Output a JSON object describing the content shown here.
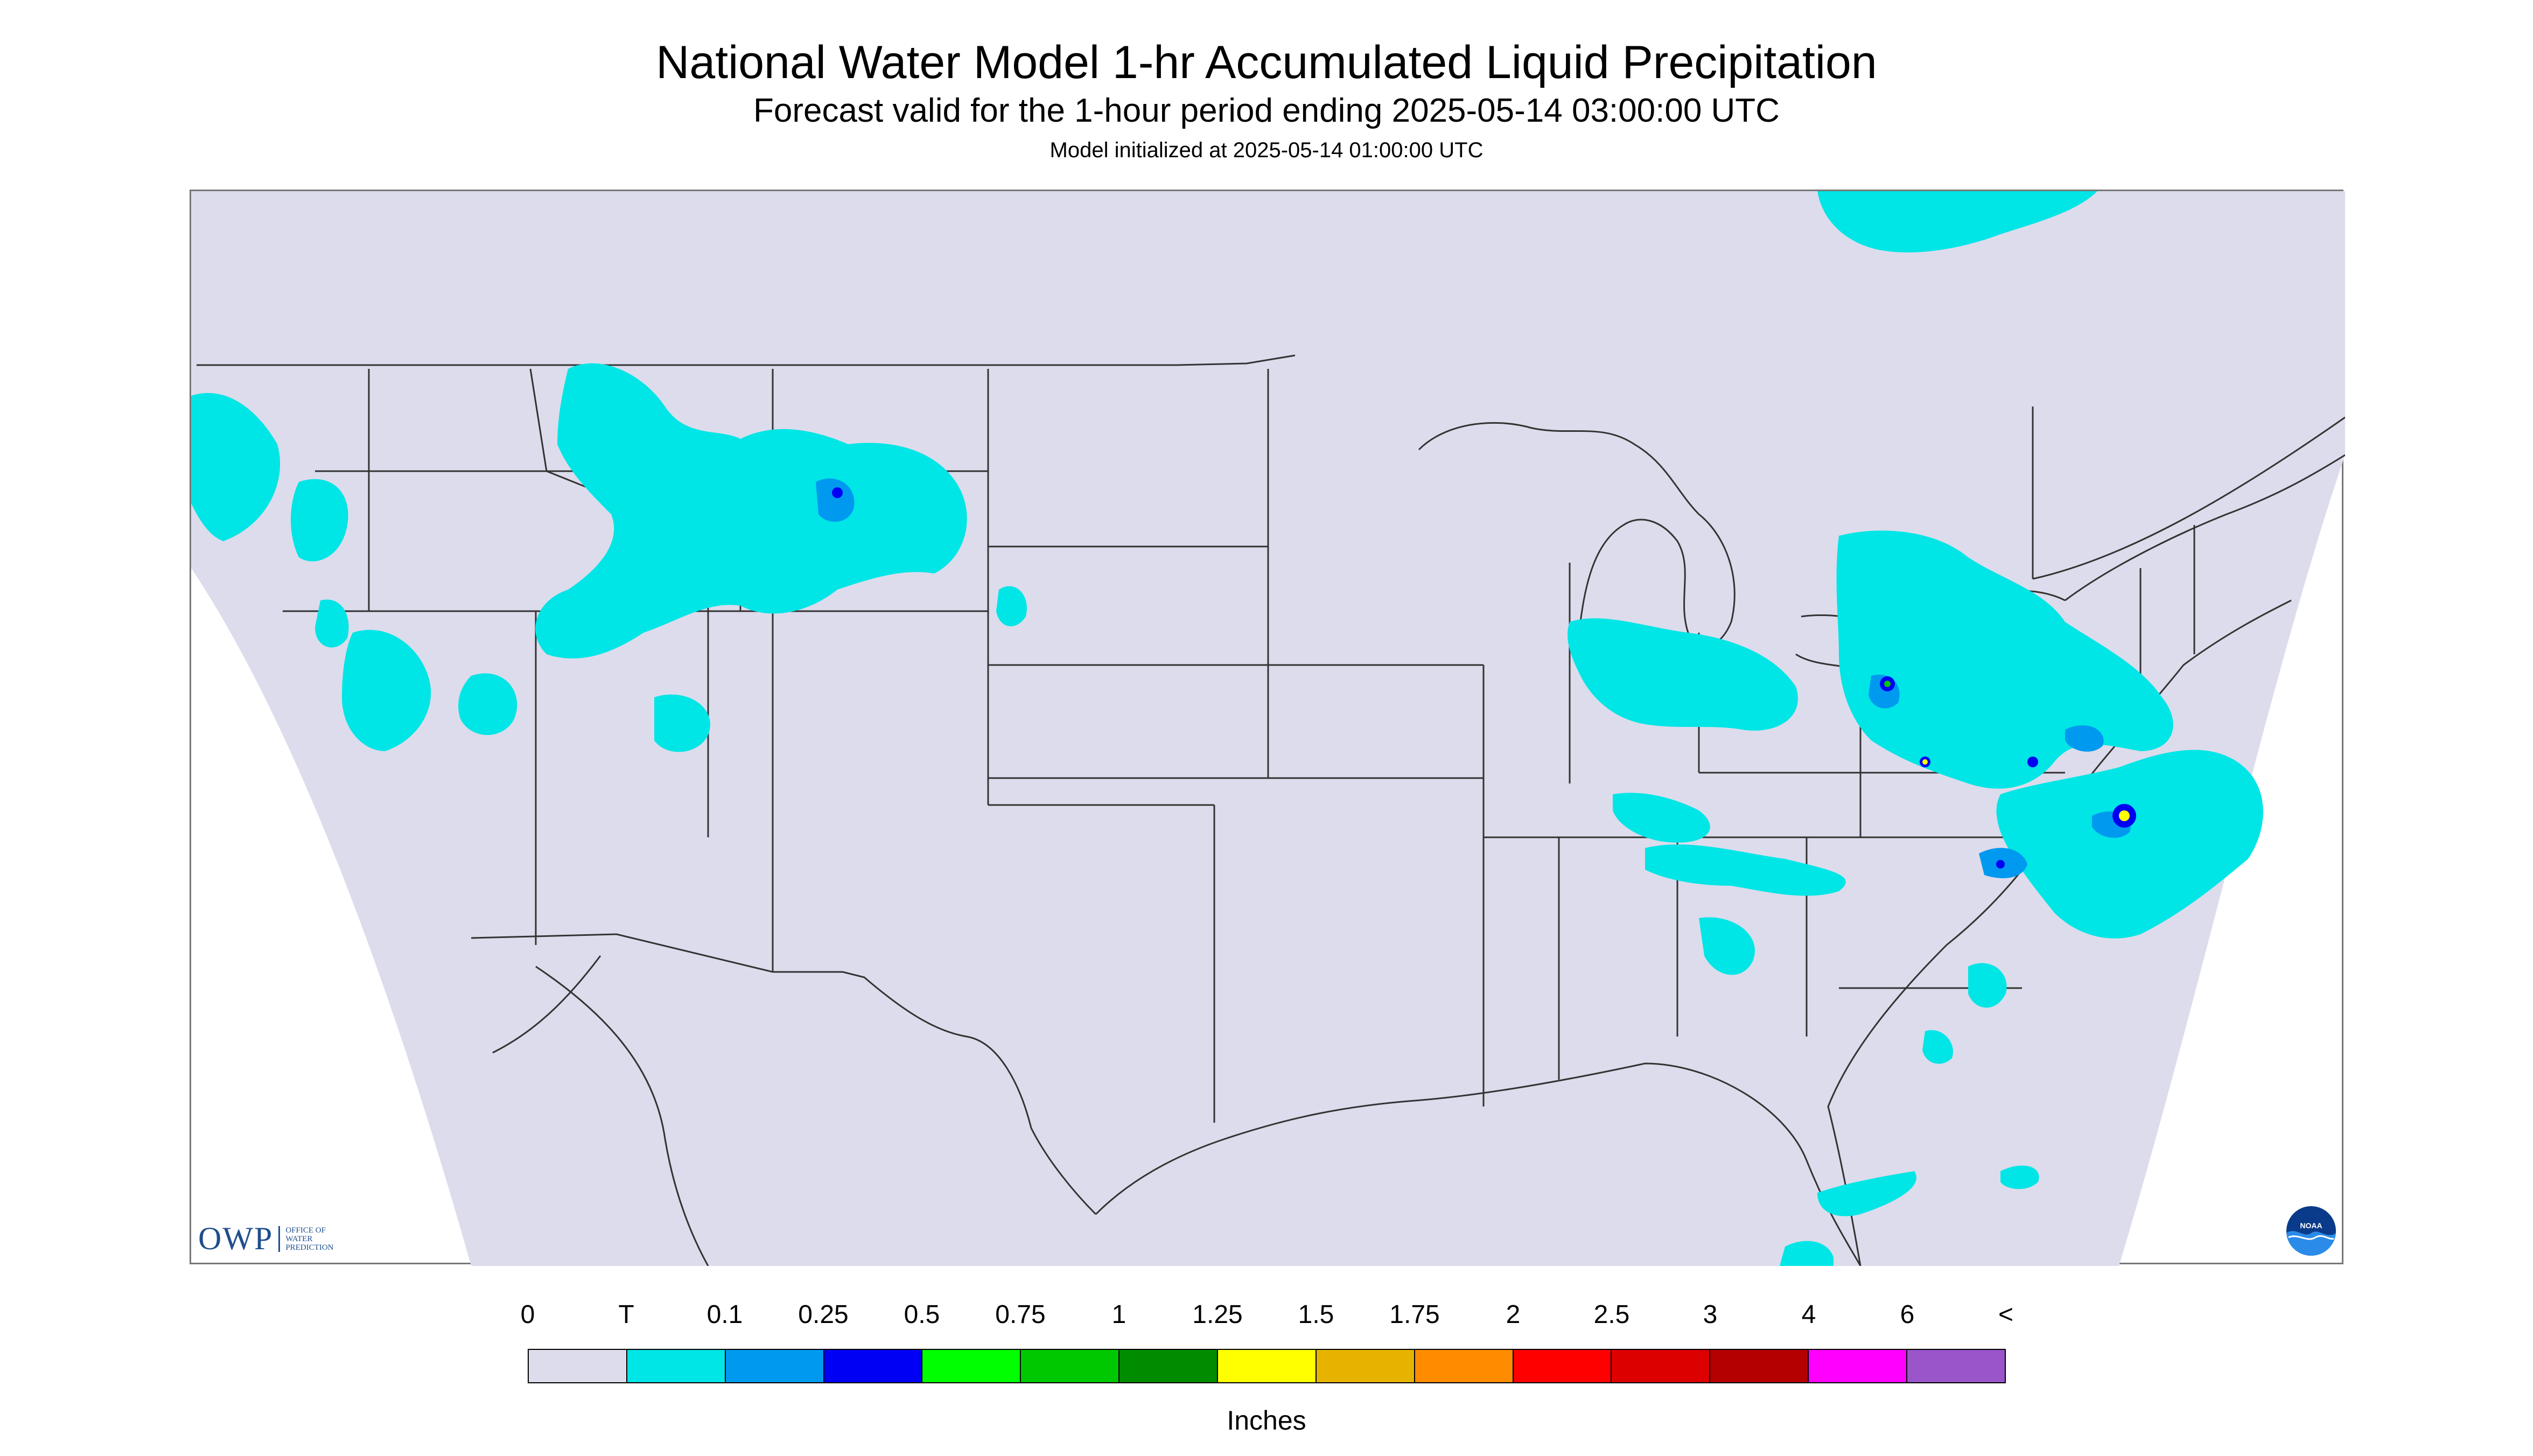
{
  "header": {
    "title": "National Water Model 1-hr Accumulated Liquid Precipitation",
    "subtitle": "Forecast valid for the 1-hour period ending 2025-05-14 03:00:00 UTC",
    "init": "Model initialized at 2025-05-14 01:00:00 UTC"
  },
  "map": {
    "projection_fill": "#dcdcec",
    "outside_fill": "#ffffff",
    "boundary_color": "#333333",
    "light_precip_color": "#00e5e5",
    "features": [
      {
        "name": "pacific-northwest-coastal",
        "level": "T"
      },
      {
        "name": "northern-rockies-montana",
        "level": "0.1"
      },
      {
        "name": "great-basin-nevada",
        "level": "T"
      },
      {
        "name": "ohio-valley",
        "level": "0.1"
      },
      {
        "name": "mid-atlantic-northeast",
        "level": "0.25"
      },
      {
        "name": "carolinas-coastal",
        "level": "0.5"
      },
      {
        "name": "offshore-atlantic",
        "level": "1.5"
      },
      {
        "name": "quebec-north",
        "level": "T"
      },
      {
        "name": "gulf-bahamas",
        "level": "T"
      }
    ]
  },
  "logos": {
    "owp_word": "OWP",
    "owp_sub": "OFFICE OF\nWATER\nPREDICTION",
    "noaa_word": "NOAA"
  },
  "legend": {
    "tick_labels": [
      "0",
      "T",
      "0.1",
      "0.25",
      "0.5",
      "0.75",
      "1",
      "1.25",
      "1.5",
      "1.75",
      "2",
      "2.5",
      "3",
      "4",
      "6",
      "<"
    ],
    "colors": [
      "#dcdcec",
      "#00e5e5",
      "#0099f0",
      "#0000f5",
      "#00ff00",
      "#00c800",
      "#008c00",
      "#ffff00",
      "#e6b400",
      "#ff8c00",
      "#ff0000",
      "#dc0000",
      "#b40000",
      "#ff00ff",
      "#9955c9"
    ],
    "units": "Inches"
  }
}
